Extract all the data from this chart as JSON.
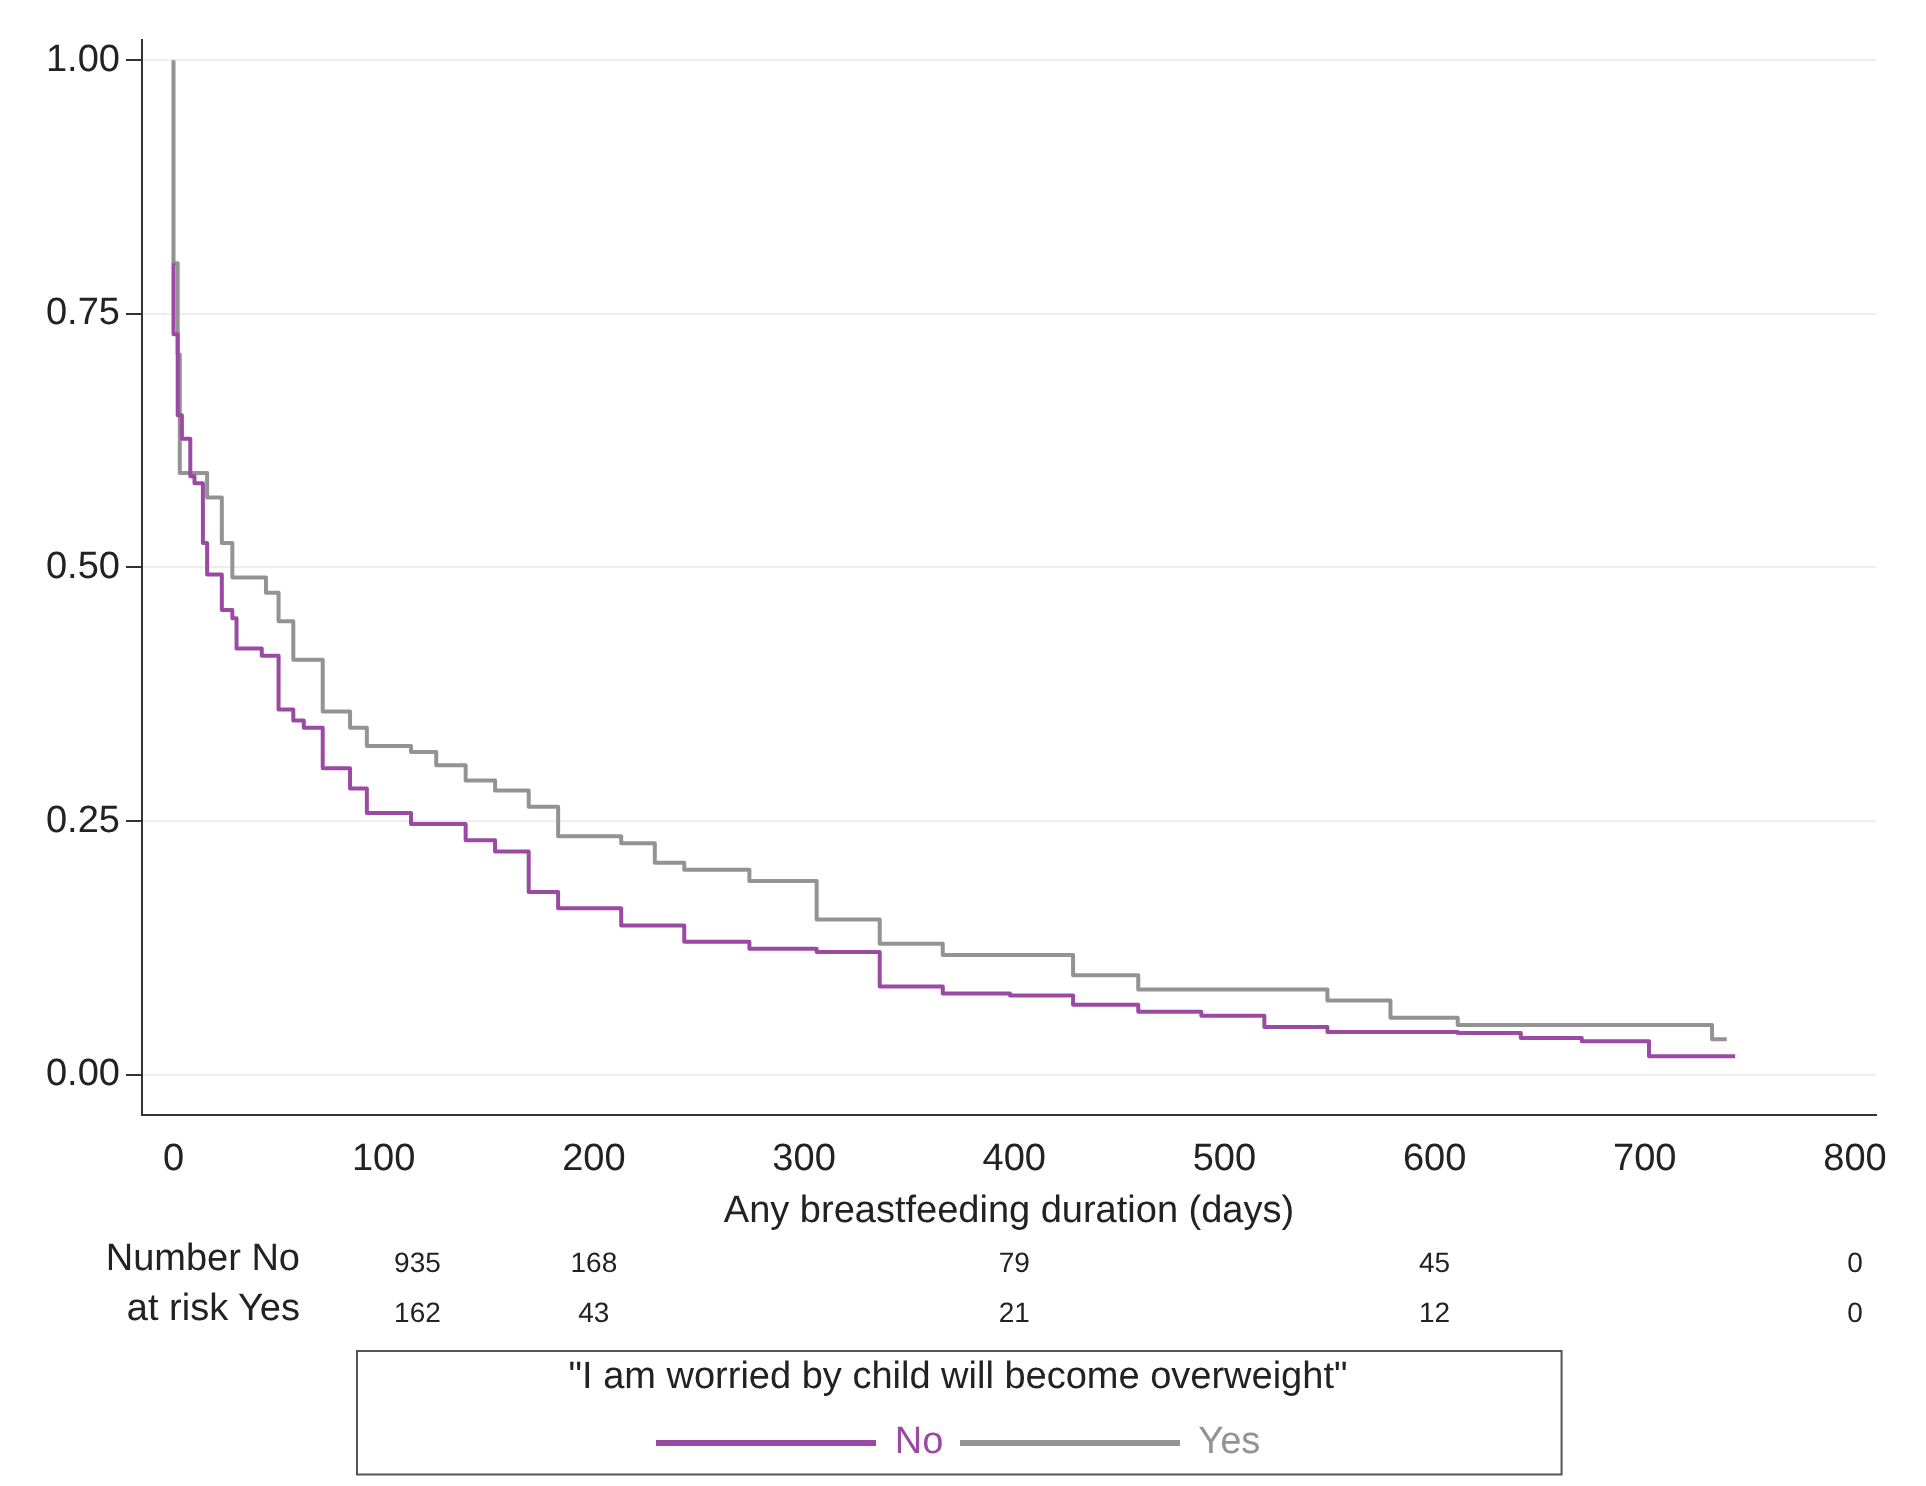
{
  "chart_data": {
    "type": "step",
    "xlabel": "Any breastfeeding duration (days)",
    "legend_title": "\"I am worried by child will become overweight\"",
    "legend": "bottom",
    "grid": "y",
    "marker": "none",
    "line_style": "solid",
    "xlim": [
      -15,
      810
    ],
    "xticks": [
      0,
      100,
      200,
      300,
      400,
      500,
      600,
      700,
      800
    ],
    "ylim": [
      -0.04,
      1.02
    ],
    "yticks": [
      {
        "value": 0,
        "label": "0.00"
      },
      {
        "value": 0.25,
        "label": "0.25"
      },
      {
        "value": 0.5,
        "label": "0.50"
      },
      {
        "value": 0.75,
        "label": "0.75"
      },
      {
        "value": 1,
        "label": "1.00"
      }
    ],
    "series": [
      {
        "name": "No",
        "color": "#9b4aa3",
        "x": [
          0,
          2,
          4,
          8,
          10,
          14,
          16,
          23,
          28,
          30,
          42,
          50,
          57,
          62,
          71,
          84,
          92,
          113,
          139,
          153,
          169,
          183,
          213,
          243,
          274,
          306,
          336,
          366,
          398,
          428,
          459,
          489,
          519,
          549,
          611,
          641,
          670,
          702,
          732,
          743
        ],
        "values": [
          0.8,
          0.73,
          0.65,
          0.627,
          0.59,
          0.583,
          0.524,
          0.493,
          0.458,
          0.45,
          0.42,
          0.413,
          0.36,
          0.349,
          0.342,
          0.302,
          0.282,
          0.258,
          0.247,
          0.231,
          0.22,
          0.18,
          0.164,
          0.147,
          0.131,
          0.124,
          0.121,
          0.087,
          0.08,
          0.078,
          0.069,
          0.062,
          0.058,
          0.047,
          0.042,
          0.041,
          0.036,
          0.033,
          0.018,
          0.018
        ]
      },
      {
        "name": "Yes",
        "color": "#939393",
        "x": [
          0,
          2,
          3,
          16,
          23,
          28,
          44,
          50,
          57,
          71,
          84,
          92,
          113,
          125,
          139,
          153,
          169,
          183,
          213,
          229,
          243,
          274,
          306,
          336,
          366,
          428,
          459,
          549,
          579,
          611,
          641,
          732,
          739
        ],
        "values": [
          1,
          0.8,
          0.71,
          0.593,
          0.569,
          0.524,
          0.49,
          0.475,
          0.447,
          0.409,
          0.358,
          0.342,
          0.324,
          0.318,
          0.305,
          0.29,
          0.28,
          0.264,
          0.235,
          0.228,
          0.209,
          0.202,
          0.191,
          0.153,
          0.129,
          0.118,
          0.098,
          0.084,
          0.073,
          0.056,
          0.049,
          0.049,
          0.035
        ]
      }
    ],
    "annotations": [
      "Number No",
      "at risk Yes",
      "935",
      "168",
      "79",
      "45",
      "0",
      "162",
      "43",
      "21",
      "12",
      "0"
    ]
  }
}
